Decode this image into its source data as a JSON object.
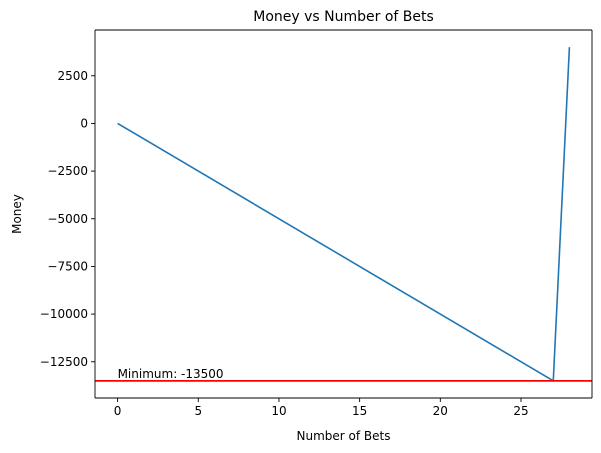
{
  "chart_data": {
    "type": "line",
    "title": "Money vs Number of Bets",
    "xlabel": "Number of Bets",
    "ylabel": "Money",
    "xlim": [
      -1.4,
      29.4
    ],
    "ylim": [
      -14400,
      4900
    ],
    "xticks": [
      0,
      5,
      10,
      15,
      20,
      25
    ],
    "xtick_labels": [
      "0",
      "5",
      "10",
      "15",
      "20",
      "25"
    ],
    "yticks": [
      -12500,
      -10000,
      -7500,
      -5000,
      -2500,
      0,
      2500
    ],
    "ytick_labels": [
      "−12500",
      "−10000",
      "−7500",
      "−5000",
      "−2500",
      "0",
      "2500"
    ],
    "grid": false,
    "series": [
      {
        "color": "#1f77b4",
        "x": [
          0,
          27,
          28
        ],
        "y": [
          0,
          -13500,
          4000
        ]
      }
    ],
    "hlines": [
      {
        "y": -13500,
        "color": "#ff0000"
      }
    ],
    "annotations": [
      {
        "text": "Minimum: -13500",
        "x": 0,
        "y": -13500
      }
    ]
  }
}
